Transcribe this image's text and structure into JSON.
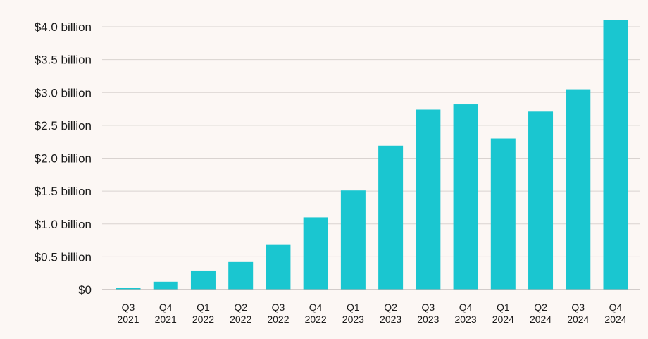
{
  "chart_data": {
    "type": "bar",
    "title": "",
    "xlabel": "",
    "ylabel": "",
    "categories": [
      [
        "Q3",
        "2021"
      ],
      [
        "Q4",
        "2021"
      ],
      [
        "Q1",
        "2022"
      ],
      [
        "Q2",
        "2022"
      ],
      [
        "Q3",
        "2022"
      ],
      [
        "Q4",
        "2022"
      ],
      [
        "Q1",
        "2023"
      ],
      [
        "Q2",
        "2023"
      ],
      [
        "Q3",
        "2023"
      ],
      [
        "Q4",
        "2023"
      ],
      [
        "Q1",
        "2024"
      ],
      [
        "Q2",
        "2024"
      ],
      [
        "Q3",
        "2024"
      ],
      [
        "Q4",
        "2024"
      ]
    ],
    "values": [
      0.03,
      0.12,
      0.29,
      0.42,
      0.69,
      1.1,
      1.51,
      2.19,
      2.74,
      2.82,
      2.3,
      2.71,
      3.05,
      4.1
    ],
    "ylim": [
      0,
      4.0
    ],
    "y_ticks": [
      0,
      0.5,
      1.0,
      1.5,
      2.0,
      2.5,
      3.0,
      3.5,
      4.0
    ],
    "y_tick_labels": [
      "$0",
      "$0.5 billion",
      "$1.0 billion",
      "$1.5 billion",
      "$2.0 billion",
      "$2.5 billion",
      "$3.0 billion",
      "$3.5 billion",
      "$4.0 billion"
    ],
    "grid": true,
    "legend": "none",
    "bar_color": "#1ac6d0"
  }
}
